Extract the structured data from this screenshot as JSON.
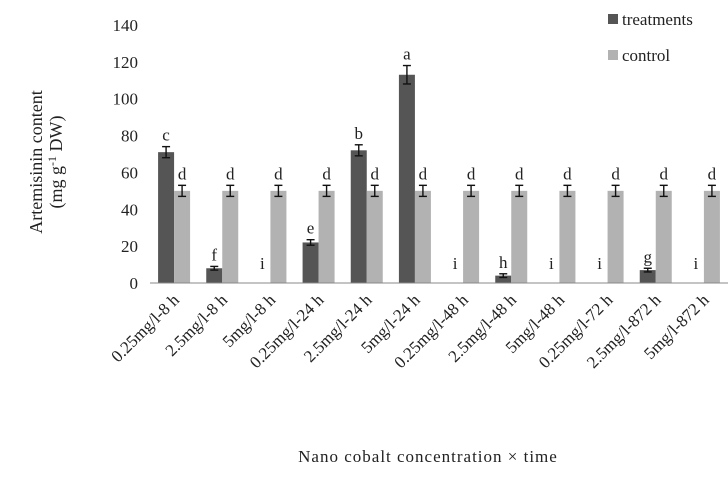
{
  "chart_data": {
    "type": "bar",
    "ylabel_line1": "Artemisinin content",
    "ylabel_line2": "(mg g",
    "ylabel_sup": "-1",
    "ylabel_line2_end": " DW)",
    "xlabel": "Nano cobalt concentration × time",
    "ylim": [
      0,
      140
    ],
    "yticks": [
      "0",
      "20",
      "40",
      "60",
      "80",
      "100",
      "120",
      "140"
    ],
    "grid": false,
    "legend_position": "top-right",
    "categories": [
      "0.25mg/l-8 h",
      "2.5mg/l-8 h",
      "5mg/l-8 h",
      "0.25mg/l-24 h",
      "2.5mg/l-24 h",
      "5mg/l-24 h",
      "0.25mg/l-48 h",
      "2.5mg/l-48 h",
      "5mg/l-48 h",
      "0.25mg/l-72 h",
      "2.5mg/l-872 h",
      "5mg/l-872 h"
    ],
    "series": [
      {
        "name": "treatments",
        "color": "#555555",
        "values": [
          71,
          8,
          0,
          22,
          72,
          113,
          0,
          4,
          0,
          0,
          7,
          0
        ],
        "errors": [
          3,
          1,
          0,
          1.5,
          3,
          5,
          0,
          1,
          0,
          0,
          1,
          0
        ],
        "labels": [
          "c",
          "f",
          "i",
          "e",
          "b",
          "a",
          "i",
          "h",
          "i",
          "i",
          "g",
          "i"
        ]
      },
      {
        "name": "control",
        "color": "#b2b2b2",
        "values": [
          50,
          50,
          50,
          50,
          50,
          50,
          50,
          50,
          50,
          50,
          50,
          50
        ],
        "errors": [
          3,
          3,
          3,
          3,
          3,
          3,
          3,
          3,
          3,
          3,
          3,
          3
        ],
        "labels": [
          "d",
          "d",
          "d",
          "d",
          "d",
          "d",
          "d",
          "d",
          "d",
          "d",
          "d",
          "d"
        ]
      }
    ]
  }
}
